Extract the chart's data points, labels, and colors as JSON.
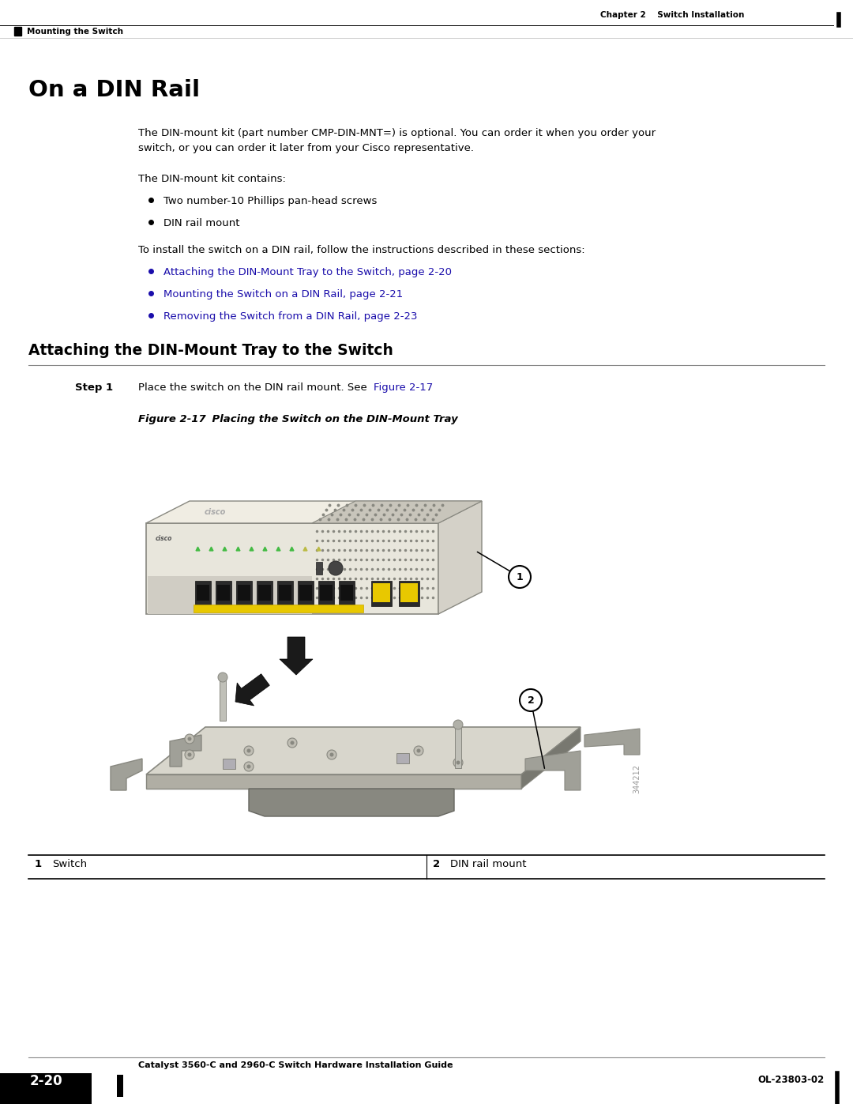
{
  "page_title": "On a DIN Rail",
  "chapter_header": "Chapter 2    Switch Installation",
  "section_header": "Mounting the Switch",
  "subsection_title": "Attaching the DIN-Mount Tray to the Switch",
  "footer_left_box": "2-20",
  "footer_center": "Catalyst 3560-C and 2960-C Switch Hardware Installation Guide",
  "footer_right": "OL-23803-02",
  "para1_line1": "The DIN-mount kit (part number CMP-DIN-MNT=) is optional. You can order it when you order your",
  "para1_line2": "switch, or you can order it later from your Cisco representative.",
  "para2": "The DIN-mount kit contains:",
  "bullet1": "Two number-10 Phillips pan-head screws",
  "bullet2": "DIN rail mount",
  "para3": "To install the switch on a DIN rail, follow the instructions described in these sections:",
  "link1": "Attaching the DIN-Mount Tray to the Switch, page 2-20",
  "link2": "Mounting the Switch on a DIN Rail, page 2-21",
  "link3": "Removing the Switch from a DIN Rail, page 2-23",
  "step1_prefix": "Place the switch on the DIN rail mount. See ",
  "step1_link": "Figure 2-17",
  "step1_suffix": ".",
  "fig_label": "Figure 2-17",
  "fig_title": "    Placing the Switch on the DIN-Mount Tray",
  "label1": "Switch",
  "label2": "DIN rail mount",
  "watermark": "344212",
  "bg_color": "#ffffff",
  "text_color": "#000000",
  "link_color": "#1a0dab",
  "header_line_color": "#000000"
}
